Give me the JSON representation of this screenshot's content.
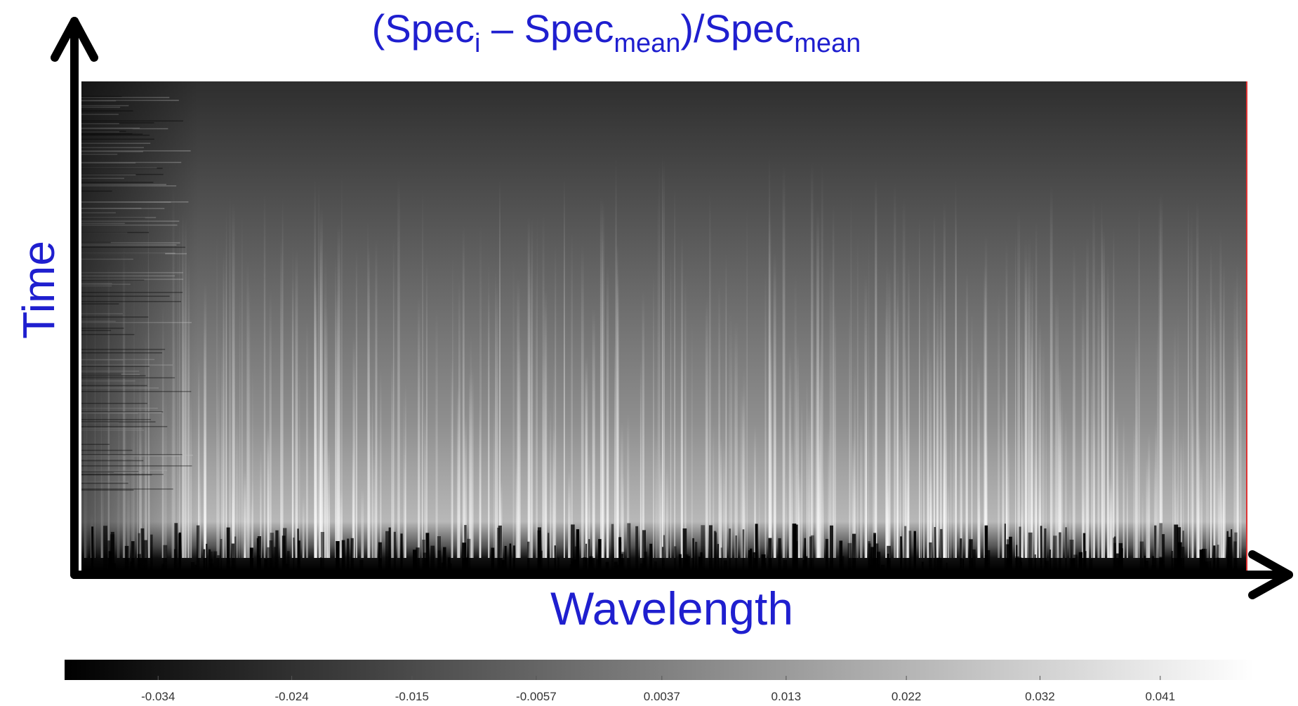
{
  "chart_data": {
    "type": "heatmap",
    "title": [
      "(Spec",
      "i",
      " – Spec",
      "mean",
      ")/Spec",
      "mean"
    ],
    "x_label": "Wavelength",
    "y_label": "Time",
    "colormap": "gray",
    "colorbar": {
      "lim": [
        -0.041,
        0.048
      ],
      "ticks": [
        -0.034,
        -0.024,
        -0.015,
        -0.0057,
        0.0037,
        0.013,
        0.022,
        0.032,
        0.041
      ]
    }
  }
}
